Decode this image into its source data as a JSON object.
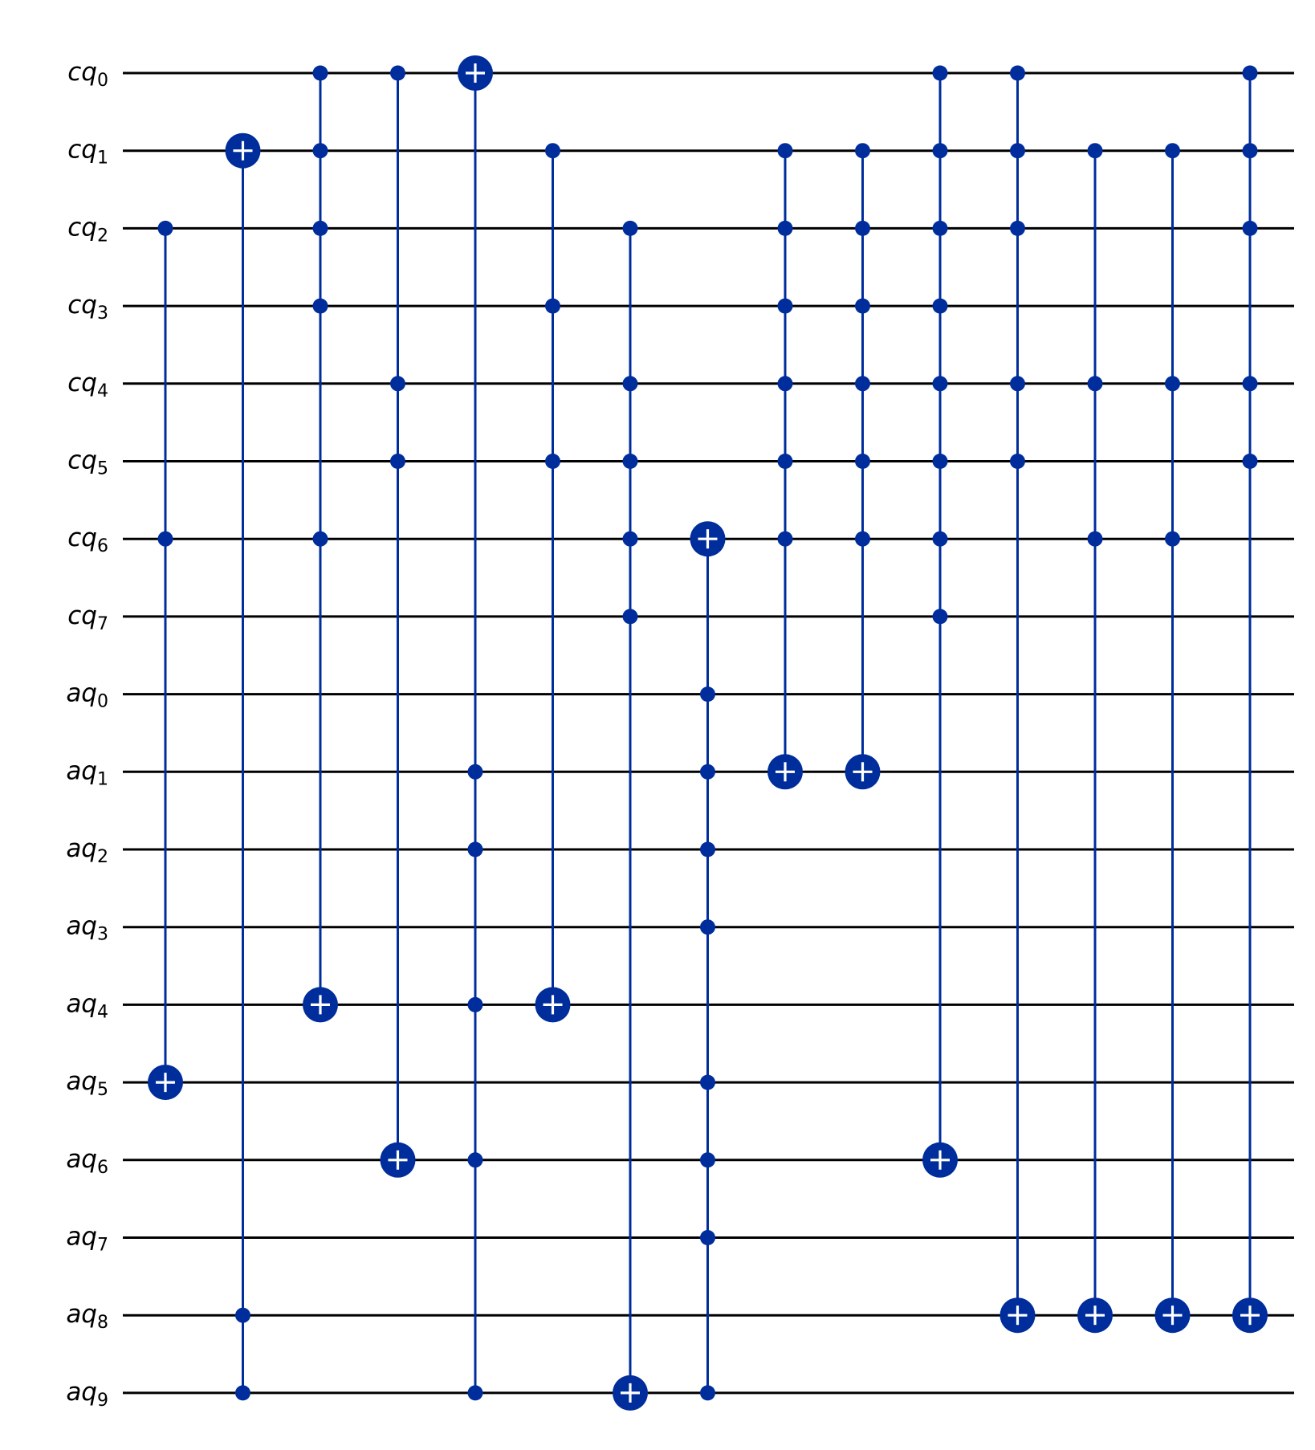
{
  "colors": {
    "wire": "#000000",
    "gate": "#002D9C",
    "target_mark": "#ffffff",
    "background": "#ffffff"
  },
  "qubits": [
    {
      "base": "cq",
      "index": "0"
    },
    {
      "base": "cq",
      "index": "1"
    },
    {
      "base": "cq",
      "index": "2"
    },
    {
      "base": "cq",
      "index": "3"
    },
    {
      "base": "cq",
      "index": "4"
    },
    {
      "base": "cq",
      "index": "5"
    },
    {
      "base": "cq",
      "index": "6"
    },
    {
      "base": "cq",
      "index": "7"
    },
    {
      "base": "aq",
      "index": "0"
    },
    {
      "base": "aq",
      "index": "1"
    },
    {
      "base": "aq",
      "index": "2"
    },
    {
      "base": "aq",
      "index": "3"
    },
    {
      "base": "aq",
      "index": "4"
    },
    {
      "base": "aq",
      "index": "5"
    },
    {
      "base": "aq",
      "index": "6"
    },
    {
      "base": "aq",
      "index": "7"
    },
    {
      "base": "aq",
      "index": "8"
    },
    {
      "base": "aq",
      "index": "9"
    }
  ],
  "gates": [
    {
      "type": "mcx",
      "controls": [
        2,
        6
      ],
      "target": 13
    },
    {
      "type": "mcx",
      "controls": [
        16,
        17
      ],
      "target": 1
    },
    {
      "type": "mcx",
      "controls": [
        0,
        1,
        2,
        3,
        6
      ],
      "target": 12
    },
    {
      "type": "mcx",
      "controls": [
        0,
        4,
        5
      ],
      "target": 14
    },
    {
      "type": "mcx",
      "controls": [
        9,
        10,
        12,
        14,
        17
      ],
      "target": 0
    },
    {
      "type": "mcx",
      "controls": [
        1,
        3,
        5
      ],
      "target": 12
    },
    {
      "type": "mcx",
      "controls": [
        2,
        4,
        5,
        6,
        7
      ],
      "target": 17
    },
    {
      "type": "mcx",
      "controls": [
        8,
        9,
        10,
        11,
        13,
        14,
        15,
        17
      ],
      "target": 6
    },
    {
      "type": "mcx",
      "controls": [
        1,
        2,
        3,
        4,
        5,
        6
      ],
      "target": 9
    },
    {
      "type": "mcx",
      "controls": [
        1,
        2,
        3,
        4,
        5,
        6
      ],
      "target": 9
    },
    {
      "type": "mcx",
      "controls": [
        0,
        1,
        2,
        3,
        4,
        5,
        6,
        7
      ],
      "target": 14
    },
    {
      "type": "mcx",
      "controls": [
        0,
        1,
        2,
        4,
        5
      ],
      "target": 16
    },
    {
      "type": "mcx",
      "controls": [
        1,
        4,
        6
      ],
      "target": 16
    },
    {
      "type": "mcx",
      "controls": [
        1,
        4,
        6
      ],
      "target": 16
    },
    {
      "type": "mcx",
      "controls": [
        0,
        1,
        2,
        4,
        5
      ],
      "target": 16
    }
  ]
}
